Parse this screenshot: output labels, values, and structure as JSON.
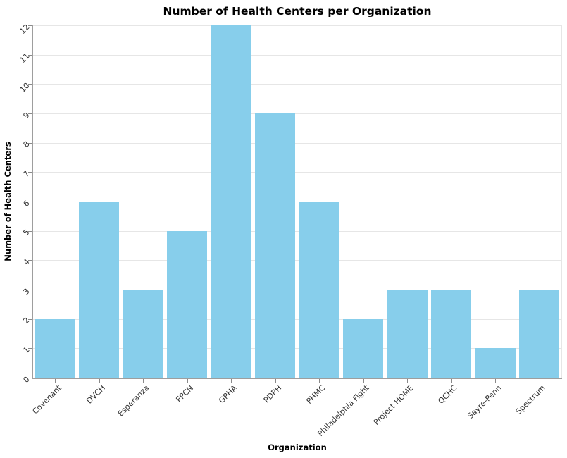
{
  "chart_data": {
    "type": "bar",
    "title": "Number of Health Centers per Organization",
    "xlabel": "Organization",
    "ylabel": "Number of Health Centers",
    "categories": [
      "Covenant",
      "DVCH",
      "Esperanza",
      "FPCN",
      "GPHA",
      "PDPH",
      "PHMC",
      "Philadelphia Fight",
      "Project HOME",
      "QCHC",
      "Sayre-Penn",
      "Spectrum"
    ],
    "values": [
      2,
      6,
      3,
      5,
      12,
      9,
      6,
      2,
      3,
      3,
      1,
      3
    ],
    "ylim": [
      0,
      12
    ],
    "yticks": [
      0,
      1,
      2,
      3,
      4,
      5,
      6,
      7,
      8,
      9,
      10,
      11,
      12
    ],
    "grid": true,
    "legend": "none",
    "colors": {
      "bar": "#87CEEB",
      "gridline": "#E6E6E6",
      "axis": "#9E9E9E",
      "tick_mark": "#8A8A8A",
      "tick_label": "#333333",
      "text": "#000000",
      "background": "#FFFFFF"
    }
  }
}
